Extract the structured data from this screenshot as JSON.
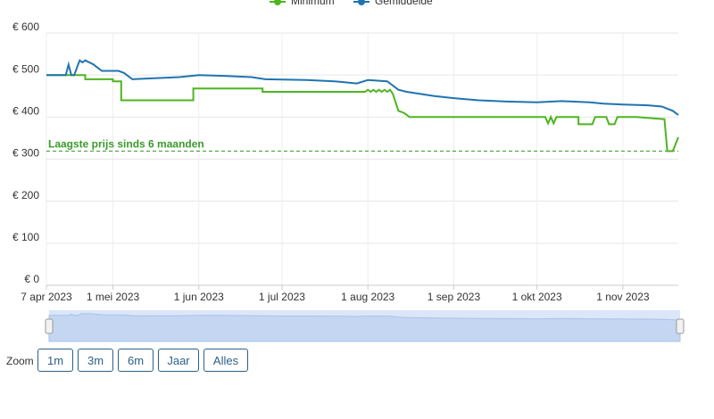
{
  "chart_data": {
    "type": "line",
    "series": [
      {
        "name": "Minimum",
        "color": "#4db51f",
        "x": [
          "2023-04-07",
          "2023-04-21",
          "2023-04-21",
          "2023-05-01",
          "2023-05-01",
          "2023-05-04",
          "2023-05-04",
          "2023-05-30",
          "2023-05-30",
          "2023-06-24",
          "2023-06-24",
          "2023-07-31",
          "2023-08-01",
          "2023-08-02",
          "2023-08-03",
          "2023-08-04",
          "2023-08-05",
          "2023-08-06",
          "2023-08-07",
          "2023-08-08",
          "2023-08-09",
          "2023-08-10",
          "2023-08-12",
          "2023-08-14",
          "2023-08-16",
          "2023-10-04",
          "2023-10-05",
          "2023-10-06",
          "2023-10-07",
          "2023-10-08",
          "2023-10-16",
          "2023-10-16",
          "2023-10-21",
          "2023-10-22",
          "2023-10-26",
          "2023-10-27",
          "2023-10-29",
          "2023-10-30",
          "2023-11-06",
          "2023-11-16",
          "2023-11-17",
          "2023-11-19",
          "2023-11-21"
        ],
        "values": [
          500,
          500,
          490,
          490,
          485,
          485,
          440,
          440,
          468,
          468,
          460,
          460,
          465,
          460,
          465,
          460,
          465,
          460,
          465,
          460,
          465,
          455,
          415,
          410,
          400,
          400,
          385,
          400,
          385,
          400,
          400,
          383,
          383,
          400,
          400,
          383,
          383,
          400,
          400,
          395,
          319,
          319,
          352
        ]
      },
      {
        "name": "Gemiddelde",
        "color": "#1f74b0",
        "x": [
          "2023-04-07",
          "2023-04-14",
          "2023-04-15",
          "2023-04-16",
          "2023-04-17",
          "2023-04-19",
          "2023-04-20",
          "2023-04-21",
          "2023-04-24",
          "2023-04-27",
          "2023-05-03",
          "2023-05-05",
          "2023-05-08",
          "2023-05-15",
          "2023-05-25",
          "2023-06-01",
          "2023-06-10",
          "2023-06-20",
          "2023-06-25",
          "2023-07-10",
          "2023-07-20",
          "2023-07-28",
          "2023-08-01",
          "2023-08-08",
          "2023-08-12",
          "2023-08-15",
          "2023-08-20",
          "2023-08-25",
          "2023-09-01",
          "2023-09-10",
          "2023-09-20",
          "2023-10-01",
          "2023-10-10",
          "2023-10-20",
          "2023-10-25",
          "2023-11-01",
          "2023-11-10",
          "2023-11-15",
          "2023-11-19",
          "2023-11-21"
        ],
        "values": [
          500,
          500,
          525,
          500,
          500,
          535,
          530,
          535,
          525,
          510,
          510,
          505,
          490,
          492,
          495,
          500,
          498,
          495,
          490,
          488,
          485,
          480,
          488,
          485,
          465,
          460,
          455,
          450,
          445,
          440,
          437,
          435,
          438,
          435,
          432,
          430,
          428,
          425,
          415,
          405
        ]
      }
    ],
    "annotation": {
      "text": "Laagste prijs sinds 6 maanden",
      "value": 319,
      "color": "#3a9a2a"
    },
    "xlim": [
      "2023-04-07",
      "2023-11-21"
    ],
    "xticks": [
      {
        "value": "2023-04-07",
        "label": "7 apr 2023"
      },
      {
        "value": "2023-05-01",
        "label": "1 mei 2023"
      },
      {
        "value": "2023-06-01",
        "label": "1 jun 2023"
      },
      {
        "value": "2023-07-01",
        "label": "1 jul 2023"
      },
      {
        "value": "2023-08-01",
        "label": "1 aug 2023"
      },
      {
        "value": "2023-09-01",
        "label": "1 sep 2023"
      },
      {
        "value": "2023-10-01",
        "label": "1 okt 2023"
      },
      {
        "value": "2023-11-01",
        "label": "1 nov 2023"
      }
    ],
    "ylim": [
      0,
      600
    ],
    "yticks": [
      {
        "value": 0,
        "label": "€ 0"
      },
      {
        "value": 100,
        "label": "€ 100"
      },
      {
        "value": 200,
        "label": "€ 200"
      },
      {
        "value": 300,
        "label": "€ 300"
      },
      {
        "value": 400,
        "label": "€ 400"
      },
      {
        "value": 500,
        "label": "€ 500"
      },
      {
        "value": 600,
        "label": "€ 600"
      }
    ],
    "grid": true,
    "legend": "top"
  },
  "zoom": {
    "label": "Zoom",
    "buttons": [
      "1m",
      "3m",
      "6m",
      "Jaar",
      "Alles"
    ]
  }
}
